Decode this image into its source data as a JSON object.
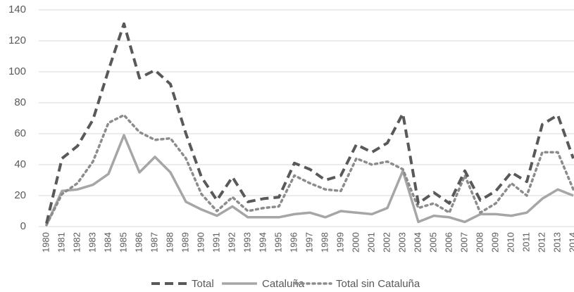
{
  "chart_data": {
    "type": "line",
    "categories": [
      "1980",
      "1981",
      "1982",
      "1983",
      "1984",
      "1985",
      "1986",
      "1987",
      "1988",
      "1989",
      "1990",
      "1991",
      "1992",
      "1993",
      "1994",
      "1995",
      "1996",
      "1997",
      "1998",
      "1999",
      "2000",
      "2001",
      "2002",
      "2003",
      "2004",
      "2005",
      "2006",
      "2007",
      "2008",
      "2009",
      "2010",
      "2011",
      "2012",
      "2013",
      "2014"
    ],
    "series": [
      {
        "name": "Total",
        "color": "#595959",
        "style": "dashed",
        "values": [
          2,
          44,
          52,
          69,
          101,
          131,
          96,
          101,
          92,
          60,
          32,
          17,
          32,
          16,
          18,
          19,
          41,
          37,
          30,
          33,
          53,
          48,
          54,
          73,
          15,
          22,
          15,
          36,
          17,
          23,
          35,
          29,
          66,
          72,
          44
        ]
      },
      {
        "name": "Cataluña",
        "color": "#a6a6a6",
        "style": "solid",
        "values": [
          1,
          23,
          24,
          27,
          34,
          59,
          35,
          45,
          35,
          16,
          11,
          7,
          13,
          6,
          6,
          6,
          8,
          9,
          6,
          10,
          9,
          8,
          12,
          36,
          3,
          7,
          6,
          3,
          8,
          8,
          7,
          9,
          18,
          24,
          20
        ]
      },
      {
        "name": "Total sin Cataluña",
        "color": "#8c8c8c",
        "style": "dotted",
        "values": [
          1,
          21,
          28,
          42,
          67,
          72,
          61,
          56,
          57,
          44,
          21,
          10,
          19,
          10,
          12,
          13,
          33,
          28,
          24,
          23,
          44,
          40,
          42,
          37,
          12,
          15,
          9,
          33,
          9,
          15,
          28,
          20,
          48,
          48,
          24
        ]
      }
    ],
    "ylim": [
      0,
      140
    ],
    "yticks": [
      0,
      20,
      40,
      60,
      80,
      100,
      120,
      140
    ],
    "grid": true,
    "legend": "bottom"
  }
}
